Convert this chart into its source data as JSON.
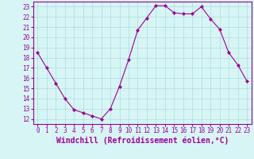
{
  "x": [
    0,
    1,
    2,
    3,
    4,
    5,
    6,
    7,
    8,
    9,
    10,
    11,
    12,
    13,
    14,
    15,
    16,
    17,
    18,
    19,
    20,
    21,
    22,
    23
  ],
  "y": [
    18.5,
    17.0,
    15.5,
    14.0,
    12.9,
    12.6,
    12.3,
    12.0,
    13.0,
    15.2,
    17.8,
    20.7,
    21.9,
    23.1,
    23.1,
    22.4,
    22.3,
    22.3,
    23.0,
    21.8,
    20.8,
    18.5,
    17.3,
    15.7
  ],
  "line_color": "#990099",
  "marker": "D",
  "marker_size": 2,
  "bg_color": "#d8f5f5",
  "grid_color": "#aadddd",
  "xlabel": "Windchill (Refroidissement éolien,°C)",
  "xlabel_color": "#990099",
  "xlabel_fontsize": 7,
  "ytick_labels": [
    "12",
    "13",
    "14",
    "15",
    "16",
    "17",
    "18",
    "19",
    "20",
    "21",
    "22",
    "23"
  ],
  "ylim": [
    11.5,
    23.5
  ],
  "xlim": [
    -0.5,
    23.5
  ],
  "xtick_labels": [
    "0",
    "1",
    "2",
    "3",
    "4",
    "5",
    "6",
    "7",
    "8",
    "9",
    "10",
    "11",
    "12",
    "13",
    "14",
    "15",
    "16",
    "17",
    "18",
    "19",
    "20",
    "21",
    "22",
    "23"
  ],
  "tick_color": "#990099",
  "tick_fontsize": 5.5,
  "spine_color": "#990099",
  "linewidth": 0.8
}
